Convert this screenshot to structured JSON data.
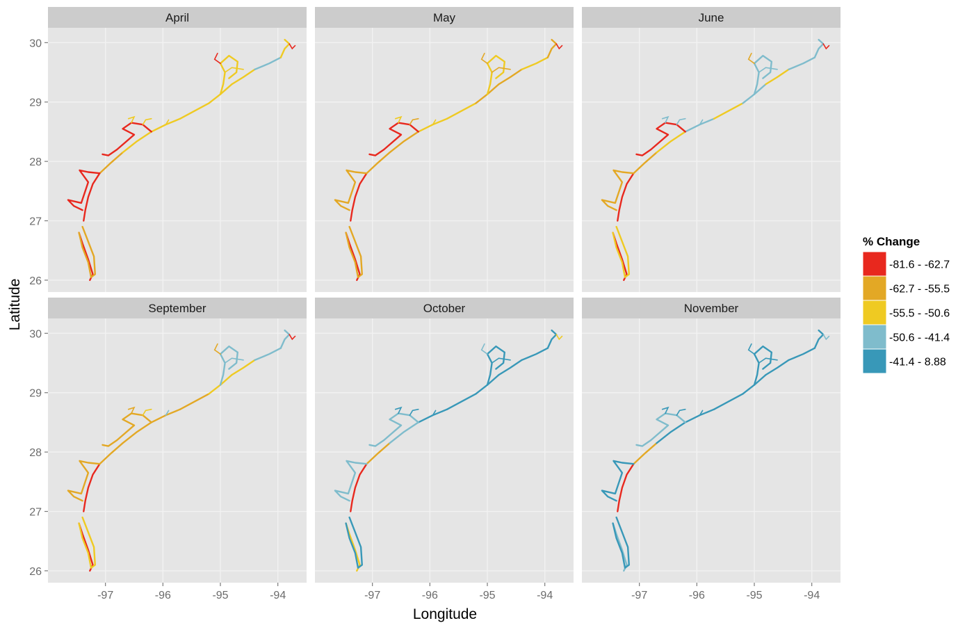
{
  "chart_data": {
    "type": "map",
    "facets": [
      {
        "label": "April",
        "coast_values": [
          -70,
          -70,
          -58,
          -53,
          -53,
          -53,
          -54,
          -53,
          -53,
          -46,
          -52,
          -58,
          -70,
          -70
        ]
      },
      {
        "label": "May",
        "coast_values": [
          -70,
          -70,
          -58,
          -58,
          -53,
          -55,
          -58,
          -56,
          -53,
          -53,
          -56,
          -56,
          -60,
          -70
        ]
      },
      {
        "label": "June",
        "coast_values": [
          -70,
          -70,
          -58,
          -53,
          -46,
          -52,
          -46,
          -53,
          -46,
          -46,
          -46,
          -53,
          -60,
          -70
        ]
      },
      {
        "label": "September",
        "coast_values": [
          -70,
          -70,
          -58,
          -58,
          -58,
          -58,
          -53,
          -52,
          -46,
          -46,
          -46,
          -53,
          -58,
          -58
        ]
      },
      {
        "label": "October",
        "coast_values": [
          -53,
          -70,
          -58,
          -46,
          -30,
          -30,
          -30,
          -30,
          -30,
          -30,
          -30,
          -30,
          -46,
          -46
        ]
      },
      {
        "label": "November",
        "coast_values": [
          -46,
          -70,
          -58,
          -30,
          -30,
          -30,
          -30,
          -30,
          -30,
          -30,
          -30,
          -30,
          -30,
          -46
        ]
      }
    ],
    "x": {
      "label": "Longitude",
      "ticks": [
        -97,
        -96,
        -95,
        -94
      ],
      "range": [
        -98.0,
        -93.5
      ]
    },
    "y": {
      "label": "Latitude",
      "ticks": [
        26,
        27,
        28,
        29,
        30
      ],
      "range": [
        25.8,
        30.25
      ]
    },
    "legend": {
      "title": "% Change",
      "placement": "right",
      "classes": [
        {
          "label": "-81.6 - -62.7",
          "color": "#e8281e"
        },
        {
          "label": "-62.7 - -55.5",
          "color": "#e3a825"
        },
        {
          "label": "-55.5 - -50.6",
          "color": "#efca22"
        },
        {
          "label": "-50.6 - -41.4",
          "color": "#7fbccc"
        },
        {
          "label": "-41.4 - 8.88",
          "color": "#3898b8"
        }
      ]
    },
    "panel_background": "#e5e5e5",
    "strip_background": "#cccccc",
    "grid_color": "#f2f2f2"
  }
}
